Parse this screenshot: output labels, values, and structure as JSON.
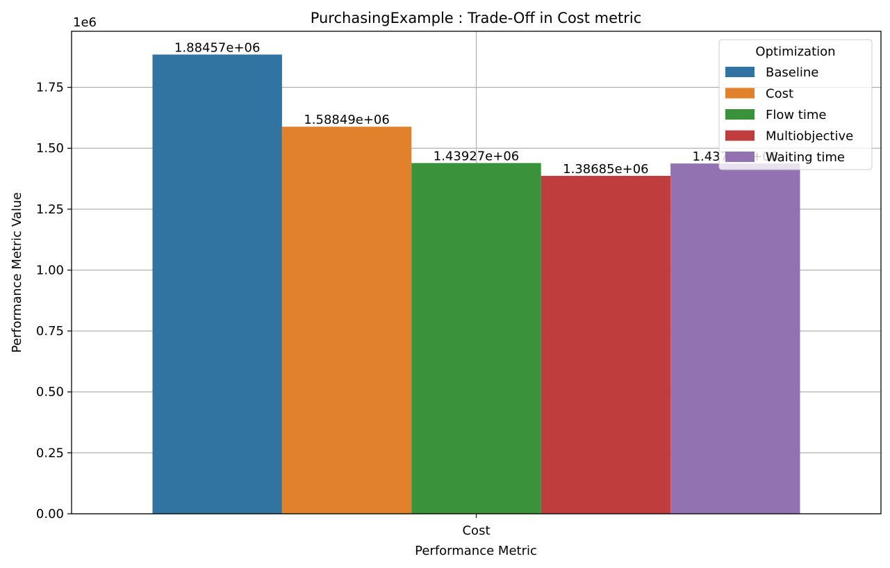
{
  "chart_data": {
    "type": "bar",
    "title": "PurchasingExample : Trade-Off in Cost metric",
    "xlabel": "Performance Metric",
    "ylabel": "Performance Metric Value",
    "y_offset_label": "1e6",
    "categories": [
      "Cost"
    ],
    "ylim": [
      0,
      1980000
    ],
    "yticks": [
      0,
      250000,
      500000,
      750000,
      1000000,
      1250000,
      1500000,
      1750000
    ],
    "ytick_labels": [
      "0.00",
      "0.25",
      "0.50",
      "0.75",
      "1.00",
      "1.25",
      "1.50",
      "1.75"
    ],
    "grid": true,
    "legend": {
      "title": "Optimization",
      "placement": "top-right"
    },
    "series": [
      {
        "name": "Baseline",
        "values": [
          1884570
        ],
        "label": "1.88457e+06",
        "color": "#3274a1"
      },
      {
        "name": "Cost",
        "values": [
          1588490
        ],
        "label": "1.58849e+06",
        "color": "#e1812c"
      },
      {
        "name": "Flow time",
        "values": [
          1439270
        ],
        "label": "1.43927e+06",
        "color": "#3a923a"
      },
      {
        "name": "Multiobjective",
        "values": [
          1386850
        ],
        "label": "1.38685e+06",
        "color": "#c03d3e"
      },
      {
        "name": "Waiting time",
        "values": [
          1437440
        ],
        "label": "1.43744e+06",
        "color": "#9372b2"
      }
    ]
  }
}
